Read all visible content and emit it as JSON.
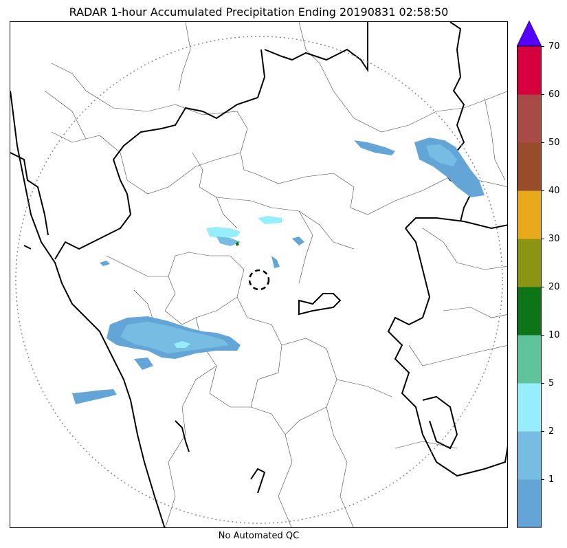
{
  "title": "RADAR 1-hour Accumulated Precipitation Ending 20190831 02:58:50",
  "footer": "No Automated QC",
  "colorbar": {
    "levels": [
      {
        "label": "",
        "color": "#64a5d7"
      },
      {
        "label": "1",
        "color": "#77bde3"
      },
      {
        "label": "2",
        "color": "#96eefd"
      },
      {
        "label": "5",
        "color": "#5fc49c"
      },
      {
        "label": "10",
        "color": "#0e7418"
      },
      {
        "label": "20",
        "color": "#8c9414"
      },
      {
        "label": "30",
        "color": "#e9a91c"
      },
      {
        "label": "40",
        "color": "#994c2a"
      },
      {
        "label": "50",
        "color": "#a84a45"
      },
      {
        "label": "60",
        "color": "#d6003f"
      },
      {
        "label": "70",
        "color": "#5400ff"
      }
    ],
    "extend_color": "#5400ff"
  }
}
